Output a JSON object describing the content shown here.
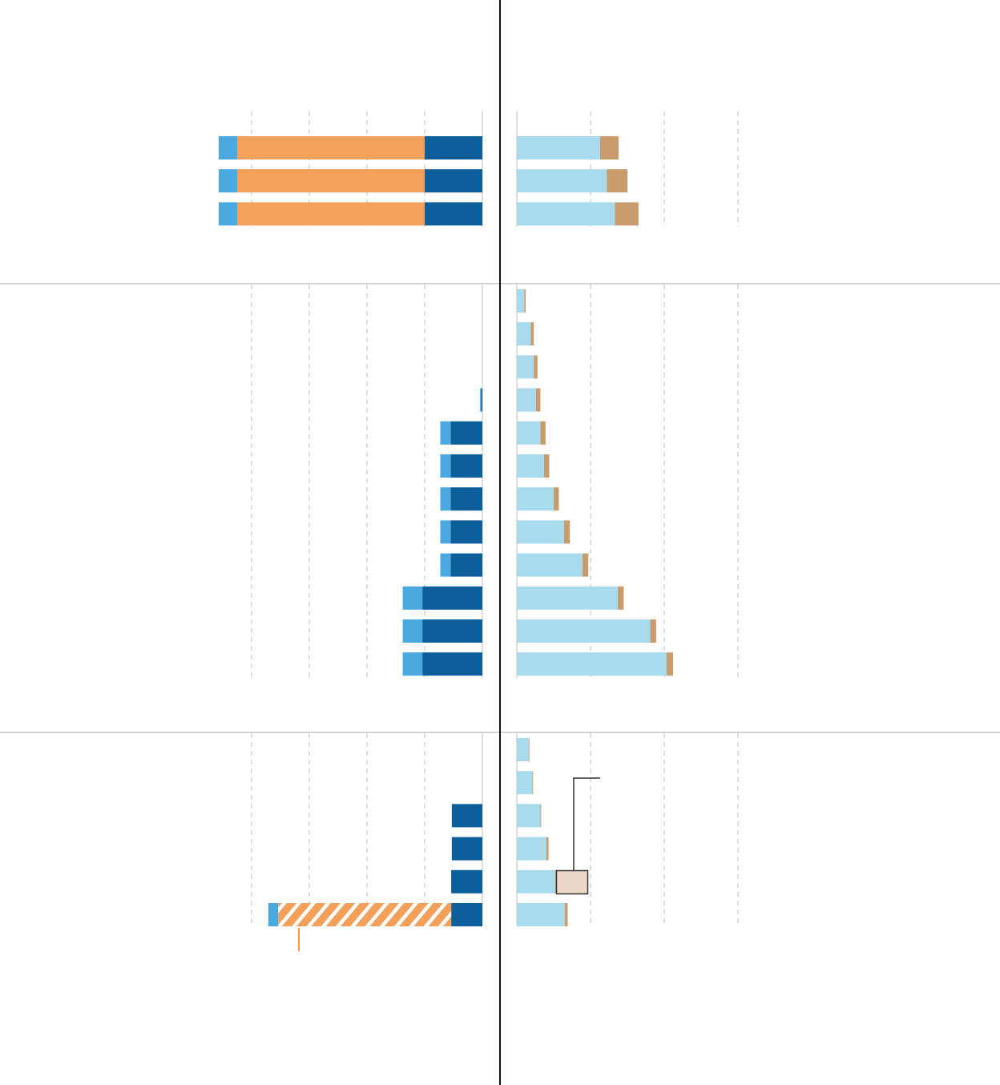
{
  "colors": {
    "light_blue_segment": "#4aaae0",
    "orange_segment": "#f2a05a",
    "dark_blue_segment": "#0d5f9c",
    "pale_blue_segment": "#a8dbee",
    "tan_segment": "#c99c6e",
    "annotation_box_fill": "#ead7c4",
    "gridline": "#cccccc",
    "divider": "#d4d4d4",
    "axis_line": "#111111",
    "annotation_line": "#333333",
    "orange_marker": "#f08a35"
  },
  "chart_data": [
    {
      "type": "bar",
      "orientation": "horizontal",
      "stacked": true,
      "direction": "leftward",
      "panel": "left",
      "groups": [
        {
          "rows": [
            {
              "segments": [
                {
                  "color": "dark_blue_segment",
                  "value": 1.0
                },
                {
                  "color": "orange_segment",
                  "value": 3.25
                },
                {
                  "color": "light_blue_segment",
                  "value": 0.32
                }
              ]
            },
            {
              "segments": [
                {
                  "color": "dark_blue_segment",
                  "value": 1.0
                },
                {
                  "color": "orange_segment",
                  "value": 3.25
                },
                {
                  "color": "light_blue_segment",
                  "value": 0.32
                }
              ]
            },
            {
              "segments": [
                {
                  "color": "dark_blue_segment",
                  "value": 1.0
                },
                {
                  "color": "orange_segment",
                  "value": 3.25
                },
                {
                  "color": "light_blue_segment",
                  "value": 0.32
                }
              ]
            }
          ]
        },
        {
          "rows": [
            {
              "segments": []
            },
            {
              "segments": []
            },
            {
              "segments": []
            },
            {
              "segments": [
                {
                  "color": "dark_blue_segment",
                  "value": 0.02
                },
                {
                  "color": "light_blue_segment",
                  "value": 0.02
                }
              ]
            },
            {
              "segments": [
                {
                  "color": "dark_blue_segment",
                  "value": 0.55
                },
                {
                  "color": "light_blue_segment",
                  "value": 0.18
                }
              ]
            },
            {
              "segments": [
                {
                  "color": "dark_blue_segment",
                  "value": 0.55
                },
                {
                  "color": "light_blue_segment",
                  "value": 0.18
                }
              ]
            },
            {
              "segments": [
                {
                  "color": "dark_blue_segment",
                  "value": 0.55
                },
                {
                  "color": "light_blue_segment",
                  "value": 0.18
                }
              ]
            },
            {
              "segments": [
                {
                  "color": "dark_blue_segment",
                  "value": 0.55
                },
                {
                  "color": "light_blue_segment",
                  "value": 0.18
                }
              ]
            },
            {
              "segments": [
                {
                  "color": "dark_blue_segment",
                  "value": 0.55
                },
                {
                  "color": "light_blue_segment",
                  "value": 0.18
                }
              ]
            },
            {
              "segments": [
                {
                  "color": "dark_blue_segment",
                  "value": 1.04
                },
                {
                  "color": "light_blue_segment",
                  "value": 0.34
                }
              ]
            },
            {
              "segments": [
                {
                  "color": "dark_blue_segment",
                  "value": 1.04
                },
                {
                  "color": "light_blue_segment",
                  "value": 0.34
                }
              ]
            },
            {
              "segments": [
                {
                  "color": "dark_blue_segment",
                  "value": 1.04
                },
                {
                  "color": "light_blue_segment",
                  "value": 0.34
                }
              ]
            }
          ]
        },
        {
          "rows": [
            {
              "segments": []
            },
            {
              "segments": []
            },
            {
              "segments": [
                {
                  "color": "dark_blue_segment",
                  "value": 0.53
                }
              ]
            },
            {
              "segments": [
                {
                  "color": "dark_blue_segment",
                  "value": 0.53
                }
              ]
            },
            {
              "segments": [
                {
                  "color": "dark_blue_segment",
                  "value": 0.54
                }
              ]
            },
            {
              "segments": [
                {
                  "color": "dark_blue_segment",
                  "value": 0.54
                },
                {
                  "color": "orange_segment",
                  "value": 3.0,
                  "hatched": true
                },
                {
                  "color": "light_blue_segment",
                  "value": 0.17
                }
              ]
            }
          ]
        }
      ]
    },
    {
      "type": "bar",
      "orientation": "horizontal",
      "stacked": true,
      "direction": "rightward",
      "panel": "right",
      "groups": [
        {
          "rows": [
            {
              "segments": [
                {
                  "color": "pale_blue_segment",
                  "value": 1.13
                },
                {
                  "color": "tan_segment",
                  "value": 0.25
                }
              ]
            },
            {
              "segments": [
                {
                  "color": "pale_blue_segment",
                  "value": 1.22
                },
                {
                  "color": "tan_segment",
                  "value": 0.28
                }
              ]
            },
            {
              "segments": [
                {
                  "color": "pale_blue_segment",
                  "value": 1.33
                },
                {
                  "color": "tan_segment",
                  "value": 0.32
                }
              ]
            }
          ]
        },
        {
          "rows": [
            {
              "segments": [
                {
                  "color": "pale_blue_segment",
                  "value": 0.1
                },
                {
                  "color": "tan_segment",
                  "value": 0.02
                }
              ]
            },
            {
              "segments": [
                {
                  "color": "pale_blue_segment",
                  "value": 0.19
                },
                {
                  "color": "tan_segment",
                  "value": 0.04
                }
              ]
            },
            {
              "segments": [
                {
                  "color": "pale_blue_segment",
                  "value": 0.23
                },
                {
                  "color": "tan_segment",
                  "value": 0.05
                }
              ]
            },
            {
              "segments": [
                {
                  "color": "pale_blue_segment",
                  "value": 0.26
                },
                {
                  "color": "tan_segment",
                  "value": 0.06
                }
              ]
            },
            {
              "segments": [
                {
                  "color": "pale_blue_segment",
                  "value": 0.32
                },
                {
                  "color": "tan_segment",
                  "value": 0.07
                }
              ]
            },
            {
              "segments": [
                {
                  "color": "pale_blue_segment",
                  "value": 0.37
                },
                {
                  "color": "tan_segment",
                  "value": 0.07
                }
              ]
            },
            {
              "segments": [
                {
                  "color": "pale_blue_segment",
                  "value": 0.5
                },
                {
                  "color": "tan_segment",
                  "value": 0.07
                }
              ]
            },
            {
              "segments": [
                {
                  "color": "pale_blue_segment",
                  "value": 0.64
                },
                {
                  "color": "tan_segment",
                  "value": 0.08
                }
              ]
            },
            {
              "segments": [
                {
                  "color": "pale_blue_segment",
                  "value": 0.89
                },
                {
                  "color": "tan_segment",
                  "value": 0.08
                }
              ]
            },
            {
              "segments": [
                {
                  "color": "pale_blue_segment",
                  "value": 1.37
                },
                {
                  "color": "tan_segment",
                  "value": 0.08
                }
              ]
            },
            {
              "segments": [
                {
                  "color": "pale_blue_segment",
                  "value": 1.81
                },
                {
                  "color": "tan_segment",
                  "value": 0.08
                }
              ]
            },
            {
              "segments": [
                {
                  "color": "pale_blue_segment",
                  "value": 2.03
                },
                {
                  "color": "tan_segment",
                  "value": 0.09
                }
              ]
            }
          ]
        },
        {
          "rows": [
            {
              "segments": [
                {
                  "color": "pale_blue_segment",
                  "value": 0.16
                },
                {
                  "color": "tan_segment",
                  "value": 0.01
                }
              ]
            },
            {
              "segments": [
                {
                  "color": "pale_blue_segment",
                  "value": 0.21
                },
                {
                  "color": "tan_segment",
                  "value": 0.01
                }
              ]
            },
            {
              "segments": [
                {
                  "color": "pale_blue_segment",
                  "value": 0.32
                },
                {
                  "color": "tan_segment",
                  "value": 0.01
                }
              ]
            },
            {
              "segments": [
                {
                  "color": "pale_blue_segment",
                  "value": 0.4
                },
                {
                  "color": "tan_segment",
                  "value": 0.03
                }
              ]
            },
            {
              "segments": [
                {
                  "color": "pale_blue_segment",
                  "value": 0.52
                },
                {
                  "color": "tan_segment",
                  "value": 0.02
                }
              ]
            },
            {
              "segments": [
                {
                  "color": "pale_blue_segment",
                  "value": 0.65
                },
                {
                  "color": "tan_segment",
                  "value": 0.04
                }
              ]
            }
          ]
        }
      ]
    }
  ]
}
